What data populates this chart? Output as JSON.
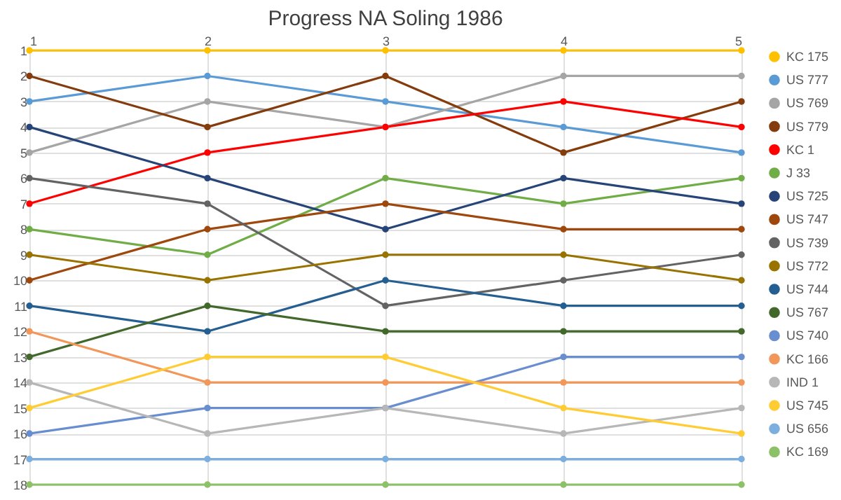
{
  "chart_data": {
    "type": "line",
    "title": "Progress NA Soling 1986",
    "x": [
      1,
      2,
      3,
      4,
      5
    ],
    "xlim": [
      1,
      5
    ],
    "xticks": [
      1,
      2,
      3,
      4,
      5
    ],
    "ylim": [
      18,
      1
    ],
    "yticks": [
      1,
      2,
      3,
      4,
      5,
      6,
      7,
      8,
      9,
      10,
      11,
      12,
      13,
      14,
      15,
      16,
      17,
      18
    ],
    "grid": true,
    "legend": "right",
    "marker": "circle",
    "series": [
      {
        "name": "KC 175",
        "color": "#ffc000",
        "values": [
          1,
          1,
          1,
          1,
          1
        ]
      },
      {
        "name": "US 777",
        "color": "#5b9bd5",
        "values": [
          3,
          2,
          3,
          4,
          5
        ]
      },
      {
        "name": "US 769",
        "color": "#a5a5a5",
        "values": [
          5,
          3,
          4,
          2,
          2
        ]
      },
      {
        "name": "US 779",
        "color": "#843c0c",
        "values": [
          2,
          4,
          2,
          5,
          3
        ]
      },
      {
        "name": "KC 1",
        "color": "#ff0000",
        "values": [
          7,
          5,
          4,
          3,
          4
        ]
      },
      {
        "name": "J 33",
        "color": "#70ad47",
        "values": [
          8,
          9,
          6,
          7,
          6
        ]
      },
      {
        "name": "US 725",
        "color": "#264478",
        "values": [
          4,
          6,
          8,
          6,
          7
        ]
      },
      {
        "name": "US 747",
        "color": "#9e480e",
        "values": [
          10,
          8,
          7,
          8,
          8
        ]
      },
      {
        "name": "US 739",
        "color": "#636363",
        "values": [
          6,
          7,
          11,
          10,
          9
        ]
      },
      {
        "name": "US 772",
        "color": "#997300",
        "values": [
          9,
          10,
          9,
          9,
          10
        ]
      },
      {
        "name": "US 744",
        "color": "#255e91",
        "values": [
          11,
          12,
          10,
          11,
          11
        ]
      },
      {
        "name": "US 767",
        "color": "#43682b",
        "values": [
          13,
          11,
          12,
          12,
          12
        ]
      },
      {
        "name": "US 740",
        "color": "#698ed0",
        "values": [
          16,
          15,
          15,
          13,
          13
        ]
      },
      {
        "name": "KC 166",
        "color": "#f1975a",
        "values": [
          12,
          14,
          14,
          14,
          14
        ]
      },
      {
        "name": "IND 1",
        "color": "#b7b7b7",
        "values": [
          14,
          16,
          15,
          16,
          15
        ]
      },
      {
        "name": "US 745",
        "color": "#ffcd33",
        "values": [
          15,
          13,
          13,
          15,
          16
        ]
      },
      {
        "name": "US 656",
        "color": "#7cafdd",
        "values": [
          17,
          17,
          17,
          17,
          17
        ]
      },
      {
        "name": "KC 169",
        "color": "#8cc168",
        "values": [
          18,
          18,
          18,
          18,
          18
        ]
      }
    ]
  }
}
